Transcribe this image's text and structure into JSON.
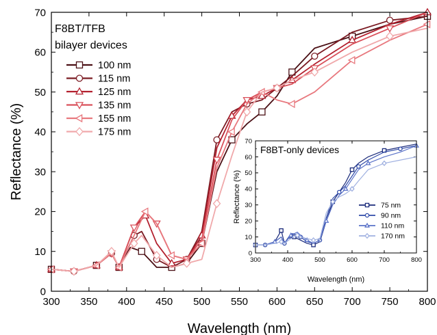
{
  "chart_data": [
    {
      "type": "line",
      "xlabel": "Wavelength (nm)",
      "ylabel": "Reflectance (%)",
      "xlim": [
        300,
        800
      ],
      "ylim": [
        0,
        70
      ],
      "x_ticks": [
        "300",
        "350",
        "400",
        "450",
        "500",
        "550",
        "600",
        "650",
        "700",
        "750",
        "800"
      ],
      "y_ticks": [
        "0",
        "10",
        "20",
        "30",
        "40",
        "50",
        "60",
        "70"
      ],
      "annotation": [
        "F8BT/TFB",
        "bilayer devices"
      ],
      "legend_position": "top-left",
      "series": [
        {
          "name": "100 nm",
          "color": "#4a0f14",
          "marker": "square",
          "x": [
            300,
            330,
            360,
            380,
            390,
            405,
            420,
            440,
            460,
            480,
            500,
            520,
            540,
            560,
            580,
            600,
            620,
            650,
            700,
            750,
            800
          ],
          "y": [
            5.5,
            5,
            6.5,
            9.5,
            6,
            11,
            10,
            6,
            6,
            7,
            12,
            30,
            38,
            42,
            45,
            49,
            55,
            61,
            64,
            67,
            69
          ]
        },
        {
          "name": "115 nm",
          "color": "#7a1a22",
          "marker": "circle",
          "x": [
            300,
            330,
            360,
            380,
            390,
            410,
            420,
            440,
            460,
            480,
            500,
            520,
            540,
            560,
            580,
            600,
            620,
            650,
            700,
            750,
            800
          ],
          "y": [
            5.5,
            5,
            6.5,
            9.5,
            6,
            14,
            15,
            8,
            6,
            8,
            15,
            38,
            45,
            47,
            48,
            51,
            54,
            59,
            65,
            68,
            69
          ]
        },
        {
          "name": "125 nm",
          "color": "#b3202e",
          "marker": "triangle-up",
          "x": [
            300,
            330,
            360,
            380,
            390,
            410,
            425,
            440,
            460,
            480,
            500,
            520,
            540,
            560,
            580,
            600,
            620,
            650,
            700,
            750,
            800
          ],
          "y": [
            5.5,
            5,
            6.5,
            9.5,
            6,
            16,
            19,
            12,
            7,
            8,
            14,
            36,
            44,
            48,
            49,
            51,
            53,
            57,
            63,
            67,
            70
          ]
        },
        {
          "name": "135 nm",
          "color": "#d9505a",
          "marker": "triangle-down",
          "x": [
            300,
            330,
            360,
            380,
            390,
            410,
            425,
            440,
            460,
            480,
            500,
            520,
            540,
            560,
            580,
            600,
            620,
            650,
            700,
            750,
            800
          ],
          "y": [
            5.5,
            5,
            6.5,
            9.5,
            6,
            16,
            20,
            17,
            9,
            8,
            13,
            33,
            43,
            48,
            50,
            51,
            52,
            56,
            62,
            66,
            70
          ]
        },
        {
          "name": "155 nm",
          "color": "#e8787e",
          "marker": "triangle-left",
          "x": [
            300,
            330,
            360,
            380,
            390,
            410,
            425,
            440,
            460,
            480,
            500,
            520,
            540,
            560,
            580,
            600,
            620,
            650,
            700,
            750,
            800
          ],
          "y": [
            5.5,
            5,
            6.5,
            9.5,
            6,
            14,
            20,
            17,
            9,
            8,
            12,
            31,
            40,
            47,
            50,
            48,
            47,
            50,
            58,
            63,
            67
          ]
        },
        {
          "name": "175 nm",
          "color": "#f0a8aa",
          "marker": "diamond",
          "x": [
            300,
            330,
            360,
            380,
            390,
            410,
            420,
            440,
            460,
            480,
            500,
            520,
            540,
            560,
            580,
            600,
            620,
            650,
            700,
            750,
            800
          ],
          "y": [
            5.5,
            5,
            6.5,
            10,
            6,
            12,
            14,
            9,
            6,
            7,
            8,
            22,
            34,
            45,
            50,
            51,
            53,
            55,
            60,
            64,
            66
          ]
        }
      ]
    },
    {
      "type": "line",
      "xlabel": "Wavelength (nm)",
      "ylabel": "Reflectance (%)",
      "xlim": [
        300,
        800
      ],
      "ylim": [
        0,
        70
      ],
      "x_ticks": [
        "300",
        "400",
        "500",
        "600",
        "700",
        "800"
      ],
      "y_ticks": [
        "0",
        "10",
        "20",
        "30",
        "40",
        "50",
        "60",
        "70"
      ],
      "annotation": [
        "F8BT-only devices"
      ],
      "legend_position": "bottom-right",
      "series": [
        {
          "name": "75 nm",
          "color": "#1a2a7a",
          "marker": "square",
          "x": [
            300,
            330,
            360,
            380,
            390,
            400,
            420,
            440,
            460,
            480,
            500,
            520,
            540,
            560,
            580,
            600,
            620,
            650,
            700,
            750,
            800
          ],
          "y": [
            5,
            5,
            7,
            14,
            6,
            9,
            10,
            8,
            6,
            5,
            7,
            20,
            32,
            38,
            44,
            52,
            56,
            60,
            64,
            66,
            68
          ]
        },
        {
          "name": "90 nm",
          "color": "#2f4aa8",
          "marker": "circle",
          "x": [
            300,
            330,
            360,
            380,
            390,
            410,
            420,
            440,
            460,
            480,
            500,
            520,
            540,
            560,
            580,
            600,
            620,
            650,
            700,
            750,
            800
          ],
          "y": [
            5,
            5,
            7,
            10,
            6,
            12,
            12,
            10,
            7,
            6,
            8,
            22,
            34,
            38,
            42,
            48,
            54,
            58,
            63,
            65,
            67
          ]
        },
        {
          "name": "110 nm",
          "color": "#5a72c8",
          "marker": "triangle-up",
          "x": [
            300,
            330,
            360,
            380,
            390,
            410,
            430,
            440,
            460,
            480,
            500,
            520,
            540,
            560,
            580,
            600,
            620,
            650,
            700,
            750,
            800
          ],
          "y": [
            5,
            5,
            7,
            10,
            6,
            11,
            13,
            11,
            8,
            6,
            8,
            20,
            30,
            36,
            40,
            46,
            52,
            56,
            60,
            63,
            67
          ]
        },
        {
          "name": "170 nm",
          "color": "#9fb0e0",
          "marker": "diamond",
          "x": [
            300,
            330,
            360,
            380,
            390,
            410,
            430,
            440,
            460,
            480,
            500,
            520,
            540,
            560,
            580,
            600,
            620,
            650,
            700,
            750,
            800
          ],
          "y": [
            5,
            5,
            6,
            7,
            6,
            9,
            11,
            10,
            9,
            8,
            9,
            25,
            32,
            35,
            37,
            40,
            45,
            52,
            56,
            58,
            60
          ]
        }
      ]
    }
  ]
}
